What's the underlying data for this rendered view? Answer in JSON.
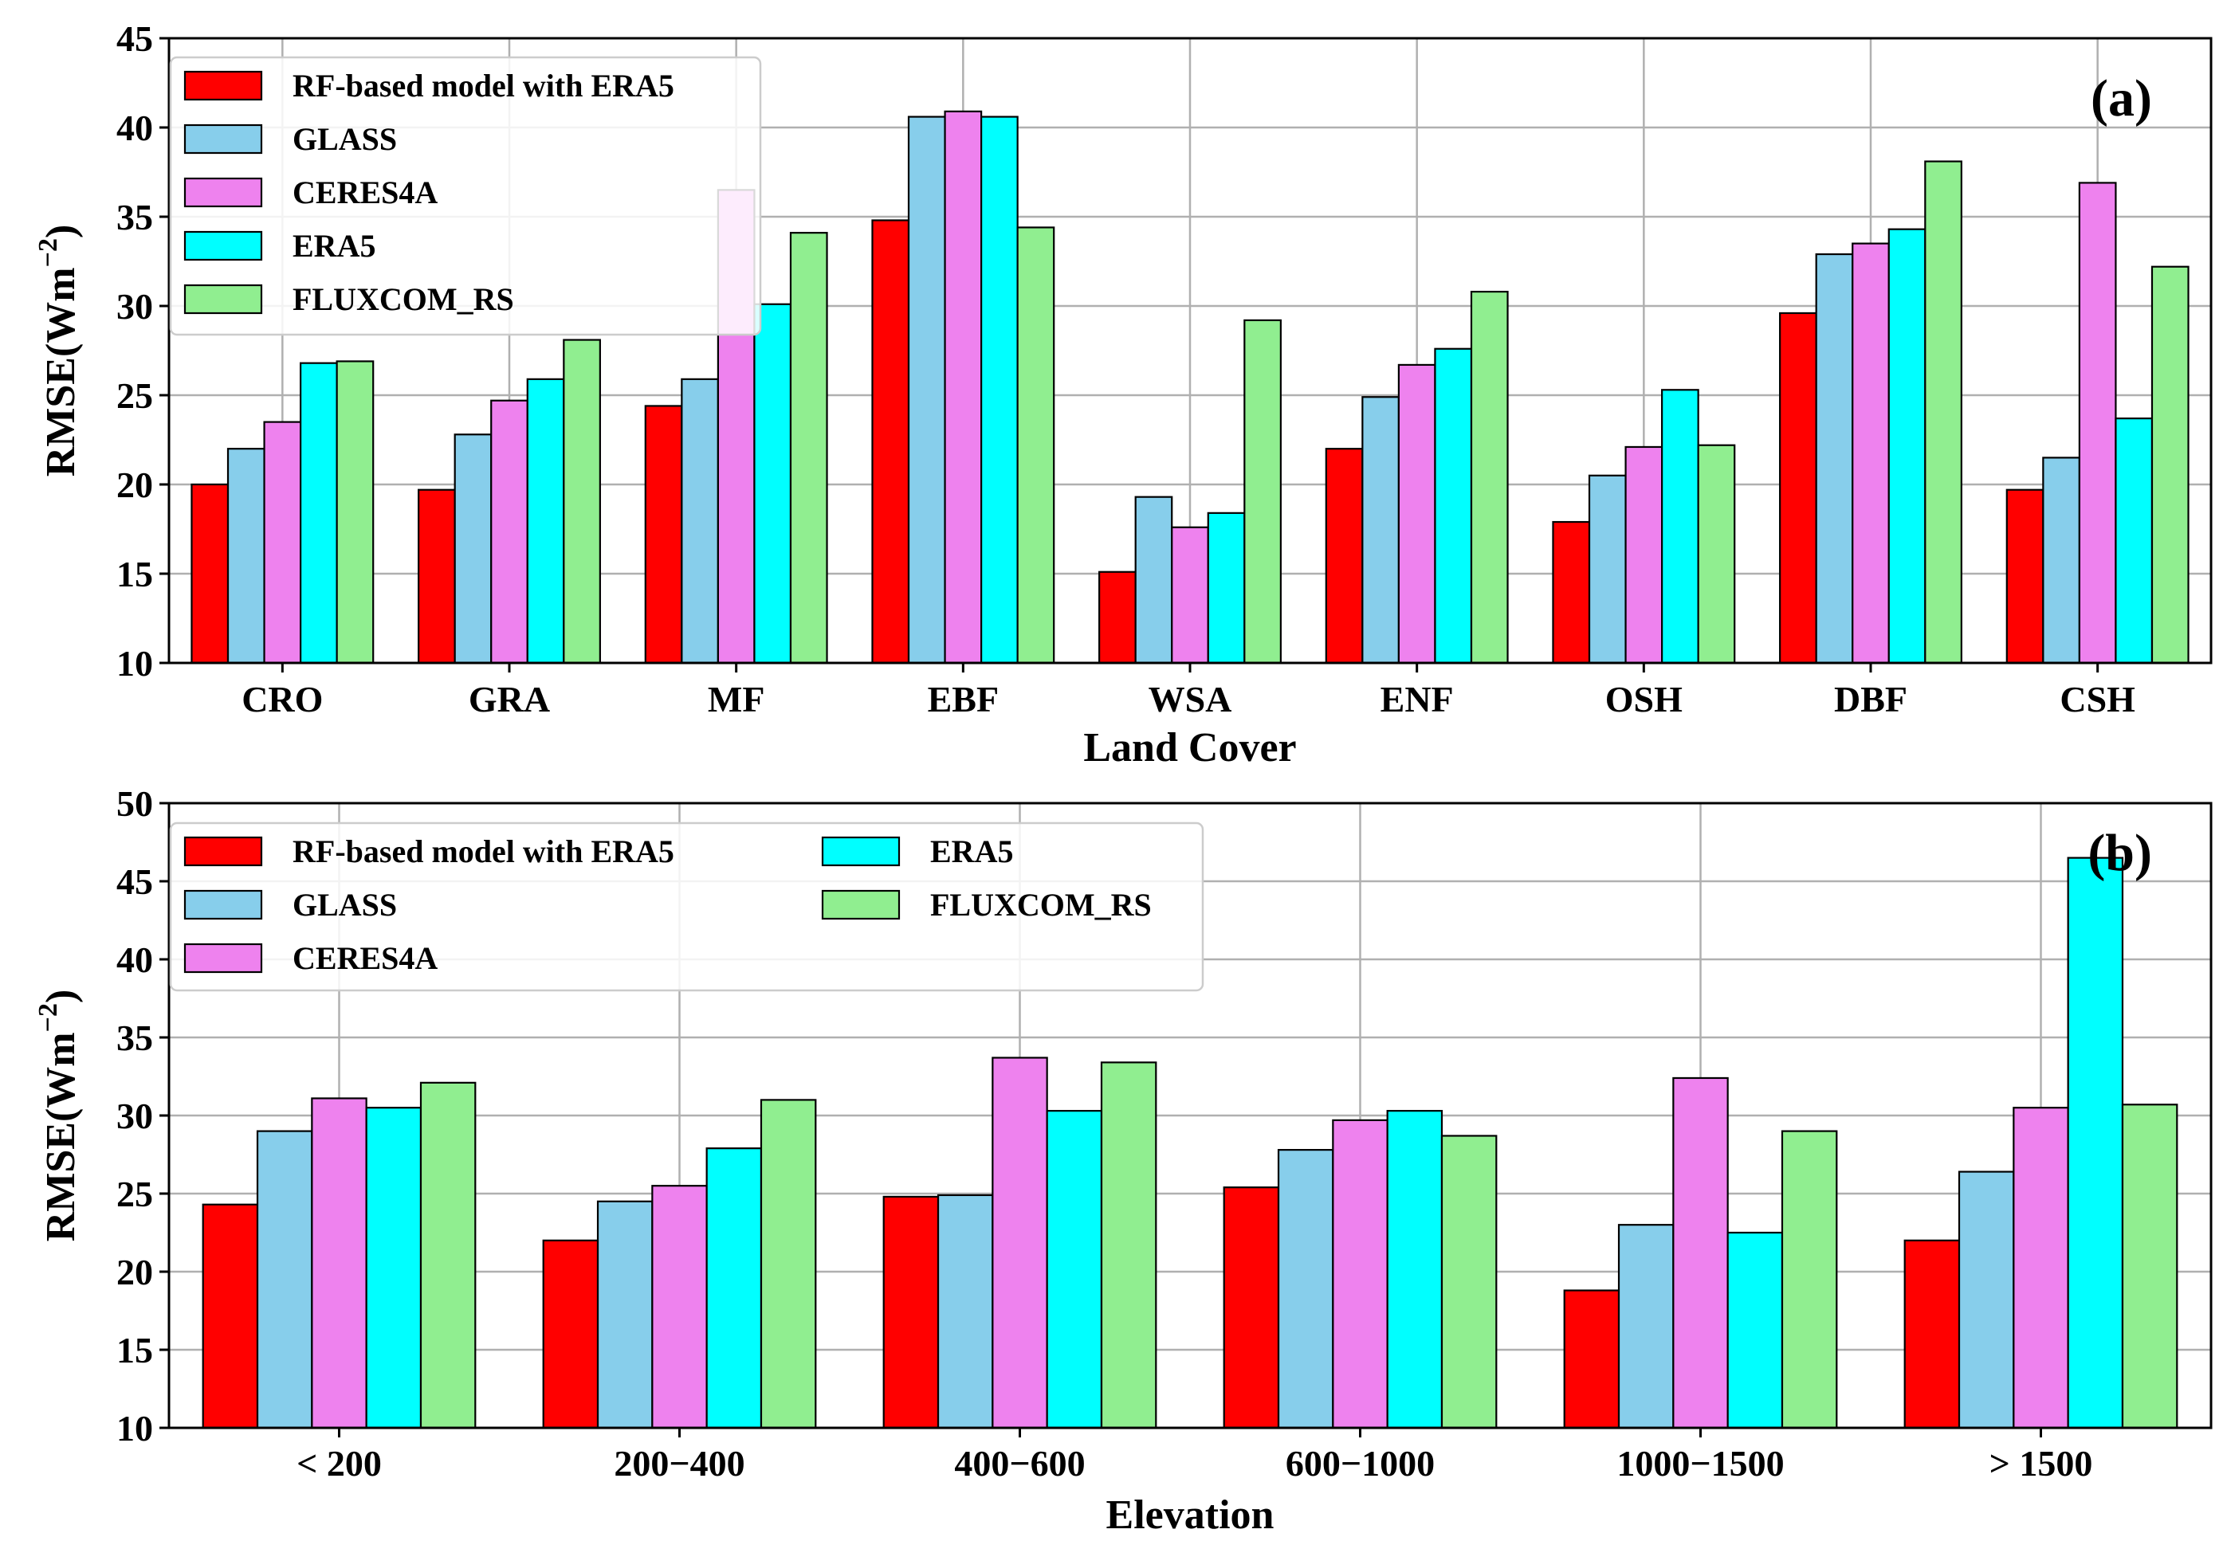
{
  "chart_data": [
    {
      "type": "bar",
      "panel_label": "(a)",
      "xlabel": "Land Cover",
      "ylabel": "RMSE(Wm",
      "ylabel_superscript": "−2",
      "ylabel_close": ")",
      "ylim": [
        10,
        45
      ],
      "yticks": [
        "10",
        "15",
        "20",
        "25",
        "30",
        "35",
        "40",
        "45"
      ],
      "grid": true,
      "legend_position": "top-left",
      "legend_columns": 1,
      "categories": [
        "CRO",
        "GRA",
        "MF",
        "EBF",
        "WSA",
        "ENF",
        "OSH",
        "DBF",
        "CSH"
      ],
      "series": [
        {
          "name": "RF-based model with ERA5",
          "color": "#ff0000",
          "values": [
            20.0,
            19.7,
            24.4,
            34.8,
            15.1,
            22.0,
            17.9,
            29.6,
            19.7
          ]
        },
        {
          "name": "GLASS",
          "color": "#87ceeb",
          "values": [
            22.0,
            22.8,
            25.9,
            40.6,
            19.3,
            24.9,
            20.5,
            32.9,
            21.5
          ]
        },
        {
          "name": "CERES4A",
          "color": "#ee82ee",
          "values": [
            23.5,
            24.7,
            36.5,
            40.9,
            17.6,
            26.7,
            22.1,
            33.5,
            36.9
          ]
        },
        {
          "name": "ERA5",
          "color": "#00ffff",
          "values": [
            26.8,
            25.9,
            30.1,
            40.6,
            18.4,
            27.6,
            25.3,
            34.3,
            23.7
          ]
        },
        {
          "name": "FLUXCOM_RS",
          "color": "#90ee90",
          "values": [
            26.9,
            28.1,
            34.1,
            34.4,
            29.2,
            30.8,
            22.2,
            38.1,
            32.2
          ]
        }
      ]
    },
    {
      "type": "bar",
      "panel_label": "(b)",
      "xlabel": "Elevation",
      "ylabel": "RMSE(Wm",
      "ylabel_superscript": "−2",
      "ylabel_close": ")",
      "ylim": [
        10,
        50
      ],
      "yticks": [
        "10",
        "15",
        "20",
        "25",
        "30",
        "35",
        "40",
        "45",
        "50"
      ],
      "grid": true,
      "legend_position": "top-left",
      "legend_columns": 2,
      "categories": [
        "< 200",
        "200−400",
        "400−600",
        "600−1000",
        "1000−1500",
        "> 1500"
      ],
      "series": [
        {
          "name": "RF-based model with ERA5",
          "color": "#ff0000",
          "values": [
            24.3,
            22.0,
            24.8,
            25.4,
            18.8,
            22.0
          ]
        },
        {
          "name": "GLASS",
          "color": "#87ceeb",
          "values": [
            29.0,
            24.5,
            24.9,
            27.8,
            23.0,
            26.4
          ]
        },
        {
          "name": "CERES4A",
          "color": "#ee82ee",
          "values": [
            31.1,
            25.5,
            33.7,
            29.7,
            32.4,
            30.5
          ]
        },
        {
          "name": "ERA5",
          "color": "#00ffff",
          "values": [
            30.5,
            27.9,
            30.3,
            30.3,
            22.5,
            46.5
          ]
        },
        {
          "name": "FLUXCOM_RS",
          "color": "#90ee90",
          "values": [
            32.1,
            31.0,
            33.4,
            28.7,
            29.0,
            30.7
          ]
        }
      ]
    }
  ]
}
